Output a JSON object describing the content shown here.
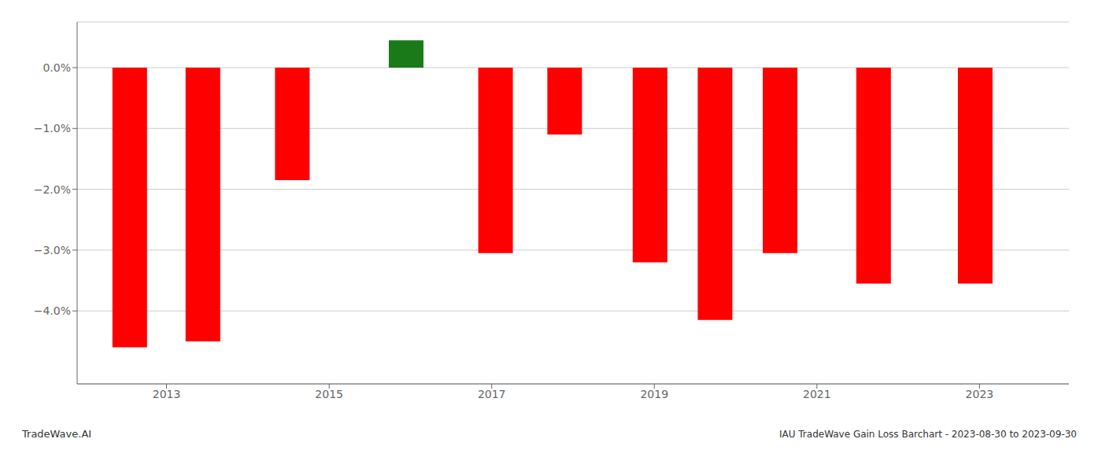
{
  "chart_data": {
    "type": "bar",
    "title": "IAU TradeWave Gain Loss Barchart - 2023-08-30 to 2023-09-30",
    "annotations": [
      "TradeWave.AI"
    ],
    "x": [
      2012.55,
      2013.45,
      2014.55,
      2015.95,
      2017.05,
      2017.9,
      2018.95,
      2019.75,
      2020.55,
      2021.7,
      2022.95
    ],
    "values": [
      -4.6,
      -4.5,
      -1.85,
      0.45,
      -3.05,
      -1.1,
      -3.2,
      -4.15,
      -3.05,
      -3.55,
      -3.55
    ],
    "colors": [
      "#ff0000",
      "#ff0000",
      "#ff0000",
      "#1a7a1a",
      "#ff0000",
      "#ff0000",
      "#ff0000",
      "#ff0000",
      "#ff0000",
      "#ff0000",
      "#ff0000"
    ],
    "xlim": [
      2011.9,
      2024.1
    ],
    "xticks": [
      2013,
      2015,
      2017,
      2019,
      2021,
      2023
    ],
    "ylim": [
      -5.2,
      0.75
    ],
    "yticks": [
      {
        "value": 0.0,
        "label": "0.0%"
      },
      {
        "value": -1.0,
        "label": "−1.0%"
      },
      {
        "value": -2.0,
        "label": "−2.0%"
      },
      {
        "value": -3.0,
        "label": "−3.0%"
      },
      {
        "value": -4.0,
        "label": "−4.0%"
      }
    ],
    "grid": "y"
  }
}
